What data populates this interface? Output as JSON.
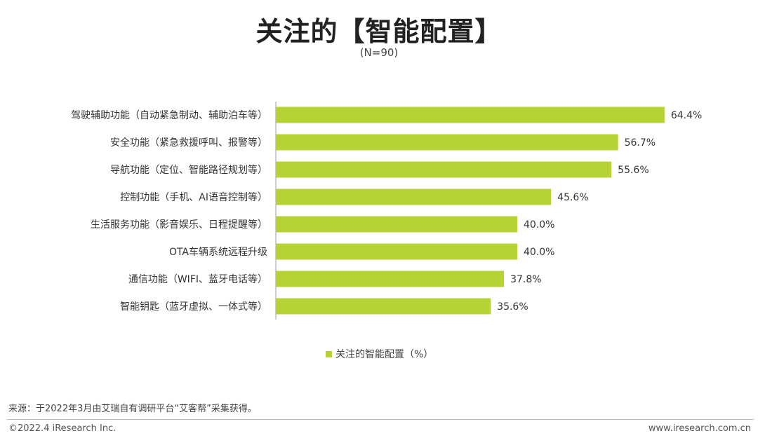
{
  "header": {
    "title": "关注的【智能配置】",
    "subtitle": "(N=90)"
  },
  "colors": {
    "bar": "#b5d334",
    "axis": "#9e9e9e"
  },
  "chart_data": {
    "type": "bar",
    "orientation": "horizontal",
    "categories": [
      "驾驶辅助功能（自动紧急制动、辅助泊车等）",
      "安全功能（紧急救援呼叫、报警等）",
      "导航功能（定位、智能路径规划等）",
      "控制功能（手机、AI语音控制等）",
      "生活服务功能（影音娱乐、日程提醒等）",
      "OTA车辆系统远程升级",
      "通信功能（WIFI、蓝牙电话等）",
      "智能钥匙（蓝牙虚拟、一体式等）"
    ],
    "series": [
      {
        "name": "关注的智能配置（%）",
        "values": [
          64.4,
          56.7,
          55.6,
          45.6,
          40.0,
          40.0,
          37.8,
          35.6
        ],
        "labels": [
          "64.4%",
          "56.7%",
          "55.6%",
          "45.6%",
          "40.0%",
          "40.0%",
          "37.8%",
          "35.6%"
        ]
      }
    ],
    "xlim": [
      0,
      70
    ],
    "grid": false,
    "legend_position": "bottom"
  },
  "legend": {
    "label": "关注的智能配置（%）"
  },
  "footer": {
    "source": "来源：于2022年3月由艾瑞自有调研平台“艾客帮”采集获得。",
    "copyright": "©2022.4 iResearch Inc.",
    "website": "www.iresearch.com.cn"
  }
}
